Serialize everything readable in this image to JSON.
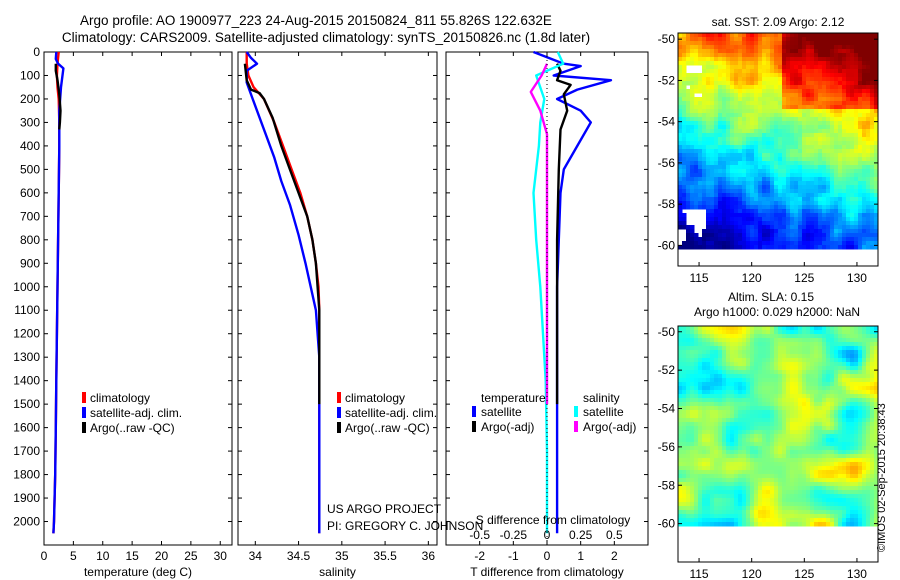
{
  "header": {
    "title_line1": "Argo profile: AO 1900977_223 24-Aug-2015 20150824_811 55.826S 122.632E",
    "title_line2": "Climatology: CARS2009. Satellite-adjusted climatology: synTS_20150826.nc (1.8d later)"
  },
  "colors": {
    "climatology": "#ff0000",
    "satellite": "#0000ff",
    "argo": "#000000",
    "sal_satellite": "#00ffff",
    "sal_argo": "#ff00ff"
  },
  "chart_data": [
    {
      "id": "temperature",
      "type": "line",
      "xlabel": "temperature (deg C)",
      "ylabel": "",
      "xlim": [
        0,
        32
      ],
      "ylim": [
        2100,
        0
      ],
      "xticks": [
        0,
        5,
        10,
        15,
        20,
        25,
        30
      ],
      "yticks": [
        0,
        100,
        200,
        300,
        400,
        500,
        600,
        700,
        800,
        900,
        1000,
        1100,
        1200,
        1300,
        1400,
        1500,
        1600,
        1700,
        1800,
        1900,
        2000
      ],
      "legend": [
        "climatology",
        "satellite-adj. clim.",
        "Argo(..raw -QC)"
      ],
      "series": [
        {
          "name": "climatology",
          "color": "#ff0000",
          "x": [
            2.5,
            2.3,
            2.2,
            2.3,
            2.5,
            2.6,
            2.6,
            2.5,
            2.4,
            2.3,
            2.2,
            2.1,
            2.0,
            1.9,
            1.8,
            1.7,
            1.6
          ],
          "y": [
            0,
            50,
            100,
            150,
            200,
            300,
            400,
            600,
            800,
            1000,
            1200,
            1400,
            1600,
            1800,
            1900,
            2000,
            2050
          ]
        },
        {
          "name": "satellite-adj. clim.",
          "color": "#0000ff",
          "x": [
            2.1,
            2.0,
            2.4,
            3.3,
            2.9,
            2.6,
            2.6,
            2.5,
            2.4,
            2.3,
            2.2,
            2.1,
            2.0,
            1.9,
            1.8,
            1.7,
            1.6
          ],
          "y": [
            0,
            30,
            50,
            70,
            150,
            250,
            400,
            600,
            800,
            1000,
            1200,
            1400,
            1600,
            1800,
            1900,
            2000,
            2050
          ]
        },
        {
          "name": "Argo(..raw -QC)",
          "color": "#000000",
          "x": [
            2.0,
            2.0,
            2.3,
            2.6,
            2.8,
            2.7,
            2.6
          ],
          "y": [
            50,
            80,
            120,
            180,
            250,
            300,
            330
          ]
        }
      ]
    },
    {
      "id": "salinity",
      "type": "line",
      "xlabel": "salinity",
      "ylabel": "",
      "xlim": [
        33.8,
        36.1
      ],
      "ylim": [
        2100,
        0
      ],
      "xticks": [
        34,
        34.5,
        35,
        35.5,
        36
      ],
      "legend": [
        "climatology",
        "satellite-adj. clim.",
        "Argo(..raw -QC)"
      ],
      "annotations": [
        "US ARGO PROJECT",
        "PI: GREGORY C. JOHNSON"
      ],
      "series": [
        {
          "name": "climatology",
          "color": "#ff0000",
          "x": [
            33.9,
            33.9,
            33.92,
            33.98,
            34.1,
            34.22,
            34.32,
            34.42,
            34.52,
            34.6,
            34.66,
            34.7,
            34.73,
            34.74,
            34.74,
            34.74,
            34.74
          ],
          "y": [
            0,
            50,
            100,
            150,
            200,
            300,
            400,
            500,
            600,
            700,
            800,
            900,
            1000,
            1100,
            1200,
            1500,
            2050
          ]
        },
        {
          "name": "satellite-adj. clim.",
          "color": "#0000ff",
          "x": [
            33.9,
            33.95,
            34.02,
            33.9,
            33.9,
            33.97,
            34.05,
            34.12,
            34.22,
            34.3,
            34.4,
            34.5,
            34.58,
            34.64,
            34.7,
            34.74,
            34.74,
            34.74
          ],
          "y": [
            0,
            25,
            50,
            80,
            130,
            200,
            280,
            350,
            450,
            550,
            650,
            780,
            900,
            1000,
            1100,
            1300,
            1500,
            2050
          ]
        },
        {
          "name": "Argo(..raw -QC)",
          "color": "#000000",
          "x": [
            33.88,
            33.9,
            33.95,
            34.05,
            34.1,
            34.2,
            34.3,
            34.4,
            34.5,
            34.6,
            34.66,
            34.7,
            34.72,
            34.74,
            34.74
          ],
          "y": [
            50,
            120,
            160,
            175,
            200,
            280,
            400,
            500,
            600,
            700,
            800,
            900,
            1000,
            1100,
            1500
          ]
        }
      ]
    },
    {
      "id": "differences",
      "type": "line",
      "xlabel": "T difference from climatology",
      "x2label": "S difference from climatology",
      "xlim": [
        -3,
        3
      ],
      "x2lim": [
        -0.75,
        0.75
      ],
      "ylim": [
        2100,
        0
      ],
      "xticks": [
        -2,
        -1,
        0,
        1,
        2
      ],
      "x2ticks": [
        -0.5,
        -0.25,
        0,
        0.25,
        0.5
      ],
      "legend_groups": {
        "temperature": "temperature",
        "salinity": "salinity"
      },
      "legend": [
        "satellite",
        "Argo(-adj)",
        "satellite",
        "Argo(-adj)"
      ],
      "series": [
        {
          "name": "satellite",
          "quantity": "temperature",
          "color": "#0000ff",
          "x": [
            -0.4,
            0.5,
            1.0,
            0.2,
            1.9,
            0.9,
            0.3,
            1.0,
            1.3,
            0.9,
            0.5,
            0.4,
            0.35,
            0.3,
            0.3,
            0.3
          ],
          "y": [
            0,
            50,
            60,
            100,
            120,
            160,
            200,
            250,
            300,
            400,
            500,
            600,
            800,
            1000,
            1500,
            2050
          ]
        },
        {
          "name": "Argo(-adj)",
          "quantity": "temperature",
          "color": "#000000",
          "x": [
            0.3,
            0.4,
            0.3,
            0.7,
            0.5,
            0.6,
            0.4,
            0.35,
            0.3,
            0.3,
            0.3
          ],
          "y": [
            50,
            80,
            120,
            140,
            180,
            250,
            330,
            500,
            800,
            1000,
            1500
          ]
        },
        {
          "name": "satellite",
          "quantity": "salinity",
          "color": "#00ffff",
          "x": [
            0.08,
            0.12,
            -0.08,
            -0.02,
            -0.05,
            -0.06,
            -0.08,
            -0.1,
            -0.08,
            -0.05,
            -0.03,
            -0.01,
            0,
            0
          ],
          "y": [
            0,
            50,
            100,
            200,
            300,
            400,
            500,
            600,
            800,
            1000,
            1200,
            1400,
            1700,
            2050
          ]
        },
        {
          "name": "Argo(-adj)",
          "quantity": "salinity",
          "color": "#ff00ff",
          "x": [
            0.0,
            -0.04,
            -0.12,
            -0.05,
            0.0,
            0.0,
            0.0,
            0.0
          ],
          "y": [
            50,
            100,
            170,
            250,
            350,
            500,
            1000,
            1500
          ]
        }
      ]
    },
    {
      "id": "sst-map",
      "type": "heatmap",
      "title": "sat. SST: 2.09 Argo: 2.12",
      "xlim": [
        113,
        132
      ],
      "ylim": [
        -61,
        -49.7
      ],
      "xticks": [
        115,
        120,
        125,
        130
      ],
      "yticks": [
        -50,
        -52,
        -54,
        -56,
        -58,
        -60
      ]
    },
    {
      "id": "sla-map",
      "type": "heatmap",
      "title_line1": "Altim. SLA: 0.15",
      "title_line2": "Argo h1000: 0.029 h2000: NaN",
      "xlim": [
        113,
        132
      ],
      "ylim": [
        -62,
        -49.7
      ],
      "xticks": [
        115,
        120,
        125,
        130
      ],
      "yticks": [
        -50,
        -52,
        -54,
        -56,
        -58,
        -60
      ]
    }
  ],
  "footer": {
    "imos_stamp": "©IMOS 02-Sep-2015 20:38:43"
  }
}
